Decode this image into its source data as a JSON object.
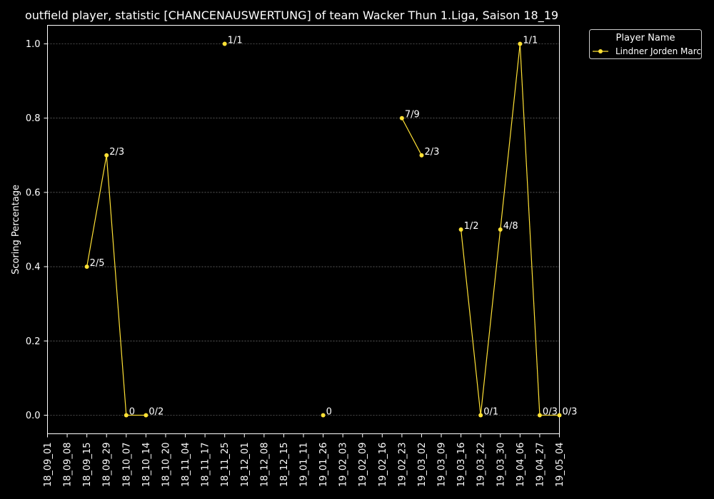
{
  "chart_data": {
    "type": "line",
    "title": "outfield player, statistic [CHANCENAUSWERTUNG] of team Wacker Thun 1.Liga, Saison 18_19",
    "xlabel": "",
    "ylabel": "Scoring Percentage",
    "categories": [
      "18_09_01",
      "18_09_08",
      "18_09_15",
      "18_09_29",
      "18_10_07",
      "18_10_14",
      "18_10_20",
      "18_11_04",
      "18_11_17",
      "18_11_25",
      "18_12_01",
      "18_12_08",
      "18_12_15",
      "19_01_11",
      "19_01_26",
      "19_02_03",
      "19_02_09",
      "19_02_16",
      "19_02_23",
      "19_03_02",
      "19_03_09",
      "19_03_16",
      "19_03_22",
      "19_03_30",
      "19_04_06",
      "19_04_27",
      "19_05_04"
    ],
    "yticks": [
      "0.0",
      "0.2",
      "0.4",
      "0.6",
      "0.8",
      "1.0"
    ],
    "ylim": [
      -0.05,
      1.05
    ],
    "grid": true,
    "legend": {
      "title": "Player Name",
      "placement": "top-right-outside"
    },
    "series": [
      {
        "name": "Lindner Jorden Marc",
        "color": "#ffe135",
        "values": [
          null,
          null,
          0.4,
          0.7,
          0.0,
          0.0,
          null,
          null,
          null,
          1.0,
          null,
          null,
          null,
          null,
          0.0,
          null,
          null,
          null,
          0.8,
          0.7,
          null,
          0.5,
          0.0,
          0.5,
          1.0,
          0.0,
          0.0
        ]
      }
    ],
    "annotations": [
      {
        "label": "2/5",
        "x": "18_09_15",
        "y": 0.4
      },
      {
        "label": "2/3",
        "x": "18_09_29",
        "y": 0.7
      },
      {
        "label": "0",
        "x": "18_10_07",
        "y": 0.0
      },
      {
        "label": "0/2",
        "x": "18_10_14",
        "y": 0.0
      },
      {
        "label": "1/1",
        "x": "18_11_25",
        "y": 1.0
      },
      {
        "label": "0",
        "x": "19_01_26",
        "y": 0.0
      },
      {
        "label": "7/9",
        "x": "19_02_23",
        "y": 0.8
      },
      {
        "label": "2/3",
        "x": "19_03_02",
        "y": 0.7
      },
      {
        "label": "1/2",
        "x": "19_03_16",
        "y": 0.5
      },
      {
        "label": "0/1",
        "x": "19_03_22",
        "y": 0.0
      },
      {
        "label": "4/8",
        "x": "19_03_30",
        "y": 0.5
      },
      {
        "label": "1/1",
        "x": "19_04_06",
        "y": 1.0
      },
      {
        "label": "0/3",
        "x": "19_04_27",
        "y": 0.0
      },
      {
        "label": "0/3",
        "x": "19_05_04",
        "y": 0.0
      }
    ]
  }
}
